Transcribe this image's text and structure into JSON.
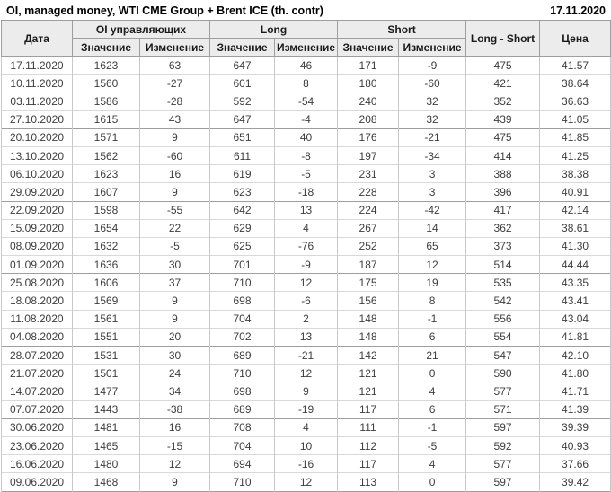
{
  "page": {
    "title": "OI, managed money, WTI CME Group + Brent ICE (th. contr)",
    "report_date": "17.11.2020"
  },
  "theme": {
    "positive_color": "#009900",
    "negative_color": "#cc0000",
    "header_bg": "#ececec",
    "body_text": "#3d3d3d",
    "border_strong": "#9e9e9e",
    "border_light": "#d9d9d9",
    "border_column": "#c9c9c9"
  },
  "chart_data": {
    "type": "table",
    "title": "OI, managed money, WTI CME Group + Brent ICE (th. contr)",
    "as_of_date": "17.11.2020",
    "header": {
      "date_col": "Дата",
      "groups": [
        {
          "label": "OI управляющих",
          "sub": [
            "Значение",
            "Изменение"
          ]
        },
        {
          "label": "Long",
          "sub": [
            "Значение",
            "Изменение"
          ]
        },
        {
          "label": "Short",
          "sub": [
            "Значение",
            "Изменение"
          ]
        }
      ],
      "long_short_col": "Long - Short",
      "price_col": "Цена"
    },
    "row_group_size": 4,
    "rows": [
      {
        "date": "17.11.2020",
        "oi": 1623,
        "oi_chg": 63,
        "long": 647,
        "long_chg": 46,
        "short": 171,
        "short_chg": -9,
        "long_short": 475,
        "price": "41.57",
        "chg_colors": [
          "pos",
          "pos",
          "neg"
        ]
      },
      {
        "date": "10.11.2020",
        "oi": 1560,
        "oi_chg": -27,
        "long": 601,
        "long_chg": 8,
        "short": 180,
        "short_chg": -60,
        "long_short": 421,
        "price": "38.64",
        "chg_colors": [
          "neg",
          "pos",
          "neg"
        ]
      },
      {
        "date": "03.11.2020",
        "oi": 1586,
        "oi_chg": -28,
        "long": 592,
        "long_chg": -54,
        "short": 240,
        "short_chg": 32,
        "long_short": 352,
        "price": "36.63",
        "chg_colors": [
          "neg",
          "neg",
          "pos"
        ]
      },
      {
        "date": "27.10.2020",
        "oi": 1615,
        "oi_chg": 43,
        "long": 647,
        "long_chg": -4,
        "short": 208,
        "short_chg": 32,
        "long_short": 439,
        "price": "41.05",
        "chg_colors": [
          "pos",
          "neg",
          "pos"
        ]
      },
      {
        "date": "20.10.2020",
        "oi": 1571,
        "oi_chg": 9,
        "long": 651,
        "long_chg": 40,
        "short": 176,
        "short_chg": -21,
        "long_short": 475,
        "price": "41.85",
        "chg_colors": [
          "pos",
          "pos",
          "neg"
        ]
      },
      {
        "date": "13.10.2020",
        "oi": 1562,
        "oi_chg": -60,
        "long": 611,
        "long_chg": -8,
        "short": 197,
        "short_chg": -34,
        "long_short": 414,
        "price": "41.25",
        "chg_colors": [
          "neg",
          "neg",
          "neg"
        ]
      },
      {
        "date": "06.10.2020",
        "oi": 1623,
        "oi_chg": 16,
        "long": 619,
        "long_chg": -5,
        "short": 231,
        "short_chg": 3,
        "long_short": 388,
        "price": "38.38",
        "chg_colors": [
          "pos",
          "neg",
          "pos"
        ]
      },
      {
        "date": "29.09.2020",
        "oi": 1607,
        "oi_chg": 9,
        "long": 623,
        "long_chg": -18,
        "short": 228,
        "short_chg": 3,
        "long_short": 396,
        "price": "40.91",
        "chg_colors": [
          "pos",
          "neg",
          "pos"
        ]
      },
      {
        "date": "22.09.2020",
        "oi": 1598,
        "oi_chg": -55,
        "long": 642,
        "long_chg": 13,
        "short": 224,
        "short_chg": -42,
        "long_short": 417,
        "price": "42.14",
        "chg_colors": [
          "neg",
          "pos",
          "neg"
        ]
      },
      {
        "date": "15.09.2020",
        "oi": 1654,
        "oi_chg": 22,
        "long": 629,
        "long_chg": 4,
        "short": 267,
        "short_chg": 14,
        "long_short": 362,
        "price": "38.61",
        "chg_colors": [
          "pos",
          "pos",
          "pos"
        ]
      },
      {
        "date": "08.09.2020",
        "oi": 1632,
        "oi_chg": -5,
        "long": 625,
        "long_chg": -76,
        "short": 252,
        "short_chg": 65,
        "long_short": 373,
        "price": "41.30",
        "chg_colors": [
          "neg",
          "neg",
          "pos"
        ]
      },
      {
        "date": "01.09.2020",
        "oi": 1636,
        "oi_chg": 30,
        "long": 701,
        "long_chg": -9,
        "short": 187,
        "short_chg": 12,
        "long_short": 514,
        "price": "44.44",
        "chg_colors": [
          "pos",
          "neg",
          "pos"
        ]
      },
      {
        "date": "25.08.2020",
        "oi": 1606,
        "oi_chg": 37,
        "long": 710,
        "long_chg": 12,
        "short": 175,
        "short_chg": 19,
        "long_short": 535,
        "price": "43.35",
        "chg_colors": [
          "pos",
          "pos",
          "pos"
        ]
      },
      {
        "date": "18.08.2020",
        "oi": 1569,
        "oi_chg": 9,
        "long": 698,
        "long_chg": -6,
        "short": 156,
        "short_chg": 8,
        "long_short": 542,
        "price": "43.41",
        "chg_colors": [
          "pos",
          "neg",
          "pos"
        ]
      },
      {
        "date": "11.08.2020",
        "oi": 1561,
        "oi_chg": 9,
        "long": 704,
        "long_chg": 2,
        "short": 148,
        "short_chg": -1,
        "long_short": 556,
        "price": "43.04",
        "chg_colors": [
          "pos",
          "pos",
          "neg"
        ]
      },
      {
        "date": "04.08.2020",
        "oi": 1551,
        "oi_chg": 20,
        "long": 702,
        "long_chg": 13,
        "short": 148,
        "short_chg": 6,
        "long_short": 554,
        "price": "41.81",
        "chg_colors": [
          "pos",
          "pos",
          "pos"
        ]
      },
      {
        "date": "28.07.2020",
        "oi": 1531,
        "oi_chg": 30,
        "long": 689,
        "long_chg": -21,
        "short": 142,
        "short_chg": 21,
        "long_short": 547,
        "price": "42.10",
        "chg_colors": [
          "pos",
          "neg",
          "pos"
        ]
      },
      {
        "date": "21.07.2020",
        "oi": 1501,
        "oi_chg": 24,
        "long": 710,
        "long_chg": 12,
        "short": 121,
        "short_chg": 0,
        "long_short": 590,
        "price": "41.80",
        "chg_colors": [
          "pos",
          "pos",
          "neg"
        ]
      },
      {
        "date": "14.07.2020",
        "oi": 1477,
        "oi_chg": 34,
        "long": 698,
        "long_chg": 9,
        "short": 121,
        "short_chg": 4,
        "long_short": 577,
        "price": "41.71",
        "chg_colors": [
          "pos",
          "pos",
          "pos"
        ]
      },
      {
        "date": "07.07.2020",
        "oi": 1443,
        "oi_chg": -38,
        "long": 689,
        "long_chg": -19,
        "short": 117,
        "short_chg": 6,
        "long_short": 571,
        "price": "41.39",
        "chg_colors": [
          "neg",
          "neg",
          "pos"
        ]
      },
      {
        "date": "30.06.2020",
        "oi": 1481,
        "oi_chg": 16,
        "long": 708,
        "long_chg": 4,
        "short": 111,
        "short_chg": -1,
        "long_short": 597,
        "price": "39.39",
        "chg_colors": [
          "pos",
          "pos",
          "neg"
        ]
      },
      {
        "date": "23.06.2020",
        "oi": 1465,
        "oi_chg": -15,
        "long": 704,
        "long_chg": 10,
        "short": 112,
        "short_chg": -5,
        "long_short": 592,
        "price": "40.93",
        "chg_colors": [
          "neg",
          "pos",
          "neg"
        ]
      },
      {
        "date": "16.06.2020",
        "oi": 1480,
        "oi_chg": 12,
        "long": 694,
        "long_chg": -16,
        "short": 117,
        "short_chg": 4,
        "long_short": 577,
        "price": "37.66",
        "chg_colors": [
          "pos",
          "neg",
          "pos"
        ]
      },
      {
        "date": "09.06.2020",
        "oi": 1468,
        "oi_chg": 9,
        "long": 710,
        "long_chg": 12,
        "short": 113,
        "short_chg": 0,
        "long_short": 597,
        "price": "39.42",
        "chg_colors": [
          "pos",
          "pos",
          "pos"
        ]
      }
    ]
  }
}
